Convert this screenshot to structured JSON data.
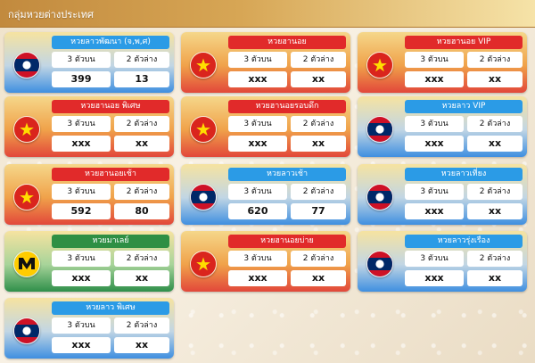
{
  "header": {
    "title": "กลุ่มหวยต่างประเทศ"
  },
  "labels": {
    "three_top": "3 ตัวบน",
    "two_bottom": "2 ตัวล่าง"
  },
  "colors": {
    "red": "#e12a2a",
    "blue": "#2b9be6",
    "green": "#2e8f44",
    "header_gold": "#d7a655"
  },
  "lotteries": [
    {
      "name": "หวยลาวพัฒนา (จ,พ,ศ)",
      "theme": "blue",
      "flag": "laos-flag-icon",
      "three_top": "399",
      "two_bottom": "13"
    },
    {
      "name": "หวยฮานอย",
      "theme": "red",
      "flag": "vietnam-flag-icon",
      "three_top": "xxx",
      "two_bottom": "xx"
    },
    {
      "name": "หวยฮานอย VIP",
      "theme": "red",
      "flag": "vietnam-flag-icon",
      "three_top": "xxx",
      "two_bottom": "xx"
    },
    {
      "name": "หวยฮานอย พิเศษ",
      "theme": "red",
      "flag": "vietnam-flag-icon",
      "three_top": "xxx",
      "two_bottom": "xx"
    },
    {
      "name": "หวยฮานอยรอบดึก",
      "theme": "red",
      "flag": "vietnam-flag-icon",
      "three_top": "xxx",
      "two_bottom": "xx"
    },
    {
      "name": "หวยลาว VIP",
      "theme": "blue",
      "flag": "laos-flag-icon",
      "three_top": "xxx",
      "two_bottom": "xx"
    },
    {
      "name": "หวยฮานอยเช้า",
      "theme": "red",
      "flag": "vietnam-flag-icon",
      "three_top": "592",
      "two_bottom": "80"
    },
    {
      "name": "หวยลาวเช้า",
      "theme": "blue",
      "flag": "laos-flag-icon",
      "three_top": "620",
      "two_bottom": "77"
    },
    {
      "name": "หวยลาวเที่ยง",
      "theme": "blue",
      "flag": "laos-flag-icon",
      "three_top": "xxx",
      "two_bottom": "xx"
    },
    {
      "name": "หวยมาเลย์",
      "theme": "green",
      "flag": "magnum-logo-icon",
      "logo_text": "magnum",
      "three_top": "xxx",
      "two_bottom": "xx"
    },
    {
      "name": "หวยฮานอยบ่าย",
      "theme": "red",
      "flag": "vietnam-flag-icon",
      "three_top": "xxx",
      "two_bottom": "xx"
    },
    {
      "name": "หวยลาวรุ่งเรือง",
      "theme": "blue",
      "flag": "laos-flag-icon",
      "three_top": "xxx",
      "two_bottom": "xx"
    },
    {
      "name": "หวยลาว พิเศษ",
      "theme": "blue",
      "flag": "laos-flag-icon",
      "three_top": "xxx",
      "two_bottom": "xx"
    }
  ]
}
